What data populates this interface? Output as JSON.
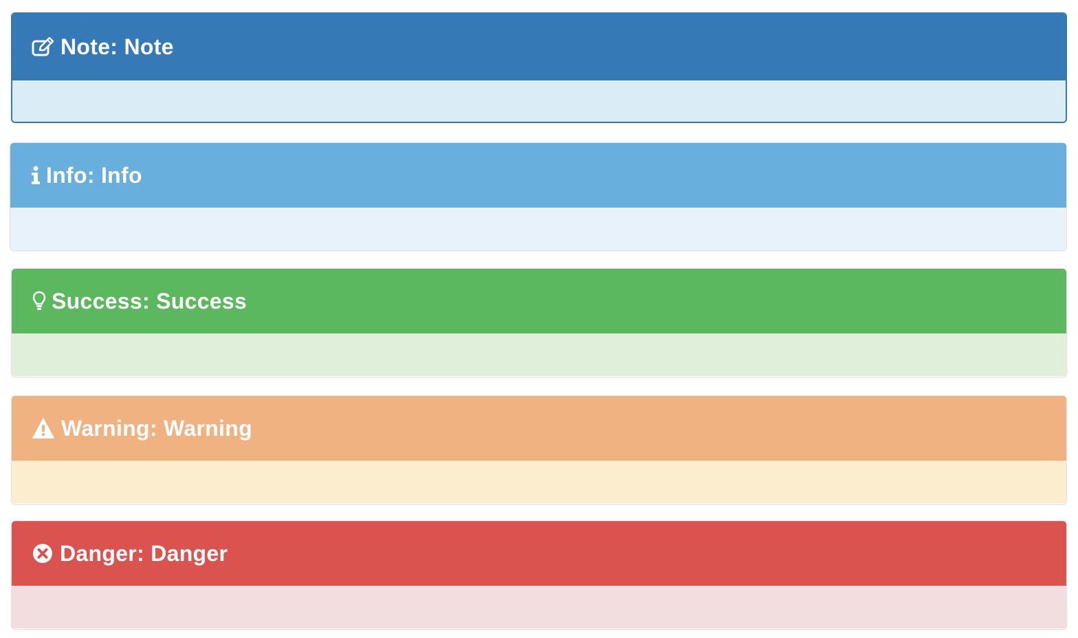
{
  "admonitions": [
    {
      "id": "note",
      "title": "Note: Note",
      "icon": "edit-icon",
      "heading_color": "#357ab6",
      "body_color": "#daedf6"
    },
    {
      "id": "info",
      "title": "Info: Info",
      "icon": "info-icon",
      "heading_color": "#69afde",
      "body_color": "#e7f2fb"
    },
    {
      "id": "success",
      "title": "Success: Success",
      "icon": "lightbulb-icon",
      "heading_color": "#5cb85f",
      "body_color": "#dfefd9"
    },
    {
      "id": "warning",
      "title": "Warning: Warning",
      "icon": "warning-triangle-icon",
      "heading_color": "#f0b280",
      "body_color": "#fcedcf"
    },
    {
      "id": "danger",
      "title": "Danger: Danger",
      "icon": "times-circle-icon",
      "heading_color": "#da534f",
      "body_color": "#f2dede"
    }
  ]
}
